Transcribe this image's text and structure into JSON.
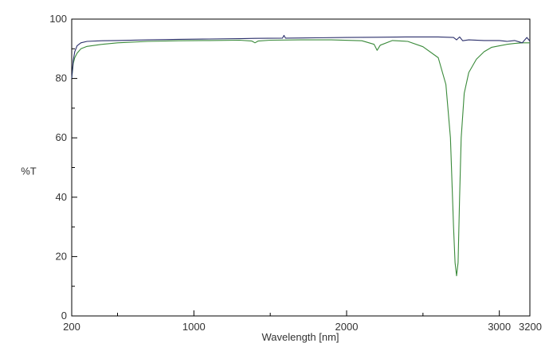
{
  "chart_data": {
    "type": "line",
    "title": "",
    "xlabel": "Wavelength [nm]",
    "ylabel": "%T",
    "xlim": [
      200,
      3200
    ],
    "ylim": [
      0,
      100
    ],
    "x_tick_values": [
      200,
      1000,
      2000,
      3000,
      3200
    ],
    "x_tick_labels": [
      "200",
      "1000",
      "2000",
      "3000",
      "3200"
    ],
    "x_minor_ticks": [
      500,
      1500,
      2500
    ],
    "y_tick_values": [
      0,
      20,
      40,
      60,
      80,
      100
    ],
    "y_tick_labels": [
      "0",
      "20",
      "40",
      "60",
      "80",
      "100"
    ],
    "grid": false,
    "legend": "none",
    "series": [
      {
        "color": "#2b2f6b",
        "x": [
          200,
          210,
          220,
          235,
          260,
          300,
          400,
          500,
          700,
          900,
          1100,
          1300,
          1400,
          1580,
          1590,
          1600,
          1800,
          2000,
          2200,
          2400,
          2500,
          2600,
          2700,
          2720,
          2740,
          2760,
          2800,
          2900,
          3000,
          3050,
          3100,
          3150,
          3180,
          3200
        ],
        "y": [
          80,
          86,
          89,
          91,
          92,
          92.5,
          92.7,
          92.8,
          93,
          93.2,
          93.3,
          93.4,
          93.5,
          93.6,
          94.5,
          93.6,
          93.7,
          93.8,
          93.9,
          94,
          94,
          94,
          93.8,
          93.0,
          94.0,
          92.7,
          93.0,
          92.8,
          92.8,
          92.5,
          92.8,
          92.0,
          93.8,
          92.6
        ]
      },
      {
        "color": "#3a8a3a",
        "x": [
          200,
          210,
          220,
          235,
          260,
          300,
          400,
          500,
          700,
          900,
          1100,
          1300,
          1380,
          1400,
          1420,
          1500,
          1700,
          1900,
          2100,
          2180,
          2200,
          2220,
          2300,
          2400,
          2500,
          2600,
          2650,
          2680,
          2700,
          2710,
          2720,
          2730,
          2740,
          2750,
          2770,
          2800,
          2850,
          2900,
          2950,
          3000,
          3050,
          3100,
          3150,
          3200
        ],
        "y": [
          80,
          85,
          87,
          88.5,
          90,
          90.8,
          91.5,
          92,
          92.5,
          92.7,
          92.8,
          92.9,
          92.6,
          92,
          92.6,
          92.9,
          93,
          93,
          92.7,
          91.5,
          89.5,
          91.2,
          92.8,
          92.5,
          90.7,
          87,
          78,
          60,
          30,
          18,
          13.5,
          18,
          40,
          60,
          75,
          82,
          86.5,
          89,
          90.5,
          91,
          91.5,
          91.8,
          92,
          92
        ]
      }
    ]
  }
}
